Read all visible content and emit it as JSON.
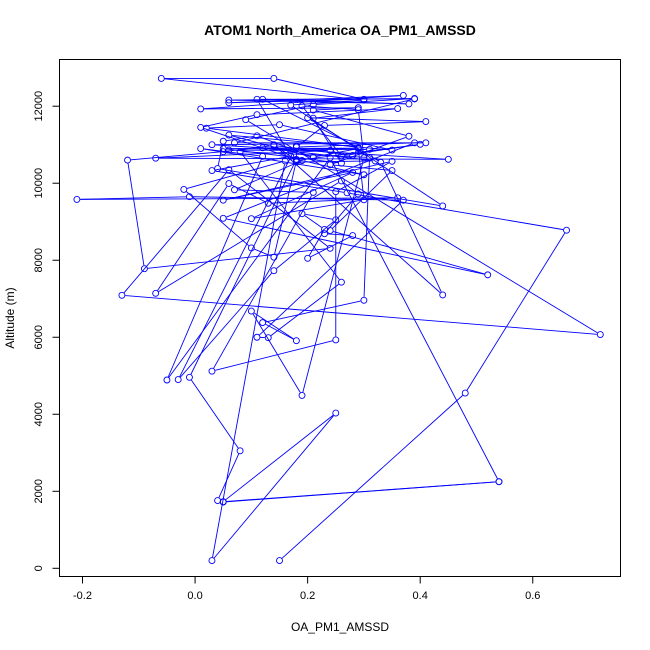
{
  "chart_data": {
    "type": "line",
    "title": "ATOM1 North_America OA_PM1_AMSSD",
    "xlabel": "OA_PM1_AMSSD",
    "ylabel": "Altitude (m)",
    "xlim": [
      -0.24,
      0.755
    ],
    "ylim": [
      -200,
      13200
    ],
    "xticks": [
      -0.2,
      0.0,
      0.2,
      0.4,
      0.6
    ],
    "xtick_labels": [
      "-0.2",
      "0.0",
      "0.2",
      "0.4",
      "0.6"
    ],
    "yticks": [
      0,
      2000,
      4000,
      6000,
      8000,
      10000,
      12000
    ],
    "ytick_labels": [
      "0",
      "2000",
      "4000",
      "6000",
      "8000",
      "10000",
      "12000"
    ],
    "grid": false,
    "marker": "open-circle",
    "series": [
      {
        "color": "#0000ff",
        "points": [
          [
            0.15,
            200
          ],
          [
            0.48,
            4550
          ],
          [
            0.66,
            8780
          ],
          [
            0.27,
            9750
          ],
          [
            0.03,
            10330
          ],
          [
            0.17,
            10700
          ],
          [
            0.11,
            12180
          ],
          [
            0.39,
            12190
          ],
          [
            0.07,
            11050
          ],
          [
            0.41,
            11050
          ],
          [
            0.03,
            11000
          ],
          [
            0.45,
            10620
          ],
          [
            -0.07,
            10650
          ],
          [
            0.24,
            10850
          ],
          [
            0.06,
            10860
          ],
          [
            0.31,
            10880
          ],
          [
            0.12,
            10920
          ],
          [
            0.32,
            10580
          ],
          [
            0.18,
            10550
          ],
          [
            0.21,
            10680
          ],
          [
            0.29,
            10900
          ],
          [
            0.28,
            10720
          ],
          [
            0.14,
            10980
          ],
          [
            0.05,
            10820
          ],
          [
            -0.12,
            10600
          ],
          [
            -0.09,
            7780
          ],
          [
            0.24,
            8310
          ],
          [
            0.06,
            10350
          ],
          [
            -0.13,
            7090
          ],
          [
            0.72,
            6070
          ],
          [
            0.09,
            11650
          ],
          [
            0.21,
            12040
          ],
          [
            0.39,
            12200
          ],
          [
            0.06,
            12160
          ],
          [
            0.38,
            12060
          ],
          [
            0.12,
            12180
          ],
          [
            0.29,
            10930
          ],
          [
            0.02,
            11430
          ],
          [
            0.15,
            11520
          ],
          [
            0.35,
            10860
          ],
          [
            0.06,
            11250
          ],
          [
            0.21,
            10670
          ],
          [
            0.11,
            11230
          ],
          [
            0.05,
            11090
          ],
          [
            0.04,
            10380
          ],
          [
            0.44,
            9410
          ],
          [
            0.17,
            12030
          ],
          [
            0.3,
            12160
          ],
          [
            -0.06,
            12720
          ],
          [
            0.14,
            12720
          ],
          [
            0.3,
            12180
          ],
          [
            0.06,
            12090
          ],
          [
            0.37,
            12280
          ],
          [
            0.01,
            11930
          ],
          [
            0.29,
            11960
          ],
          [
            0.21,
            11900
          ],
          [
            0.38,
            11220
          ],
          [
            0.24,
            10480
          ],
          [
            0.35,
            10330
          ],
          [
            0.24,
            8770
          ],
          [
            0.52,
            7620
          ],
          [
            0.05,
            9090
          ],
          [
            0.39,
            11050
          ],
          [
            0.18,
            10940
          ],
          [
            0.23,
            11500
          ],
          [
            0.41,
            11600
          ],
          [
            0.2,
            11700
          ],
          [
            0.33,
            10540
          ],
          [
            0.44,
            7100
          ],
          [
            0.14,
            11000
          ],
          [
            0.18,
            10590
          ],
          [
            0.4,
            11010
          ],
          [
            0.26,
            10710
          ],
          [
            0.19,
            12010
          ],
          [
            0.29,
            11910
          ],
          [
            0.3,
            10660
          ],
          [
            0.19,
            4490
          ],
          [
            0.1,
            6680
          ],
          [
            0.18,
            5910
          ],
          [
            0.12,
            6380
          ],
          [
            0.3,
            6960
          ],
          [
            0.31,
            10670
          ],
          [
            0.08,
            10820
          ],
          [
            0.26,
            7430
          ],
          [
            0.13,
            5990
          ],
          [
            0.11,
            6000
          ],
          [
            0.37,
            9560
          ],
          [
            -0.01,
            9650
          ],
          [
            -0.21,
            9580
          ],
          [
            0.36,
            9620
          ],
          [
            0.13,
            9480
          ],
          [
            0.06,
            9990
          ],
          [
            -0.07,
            7140
          ],
          [
            0.26,
            10060
          ],
          [
            0.29,
            9720
          ],
          [
            0.23,
            8690
          ],
          [
            0.28,
            8640
          ],
          [
            0.2,
            8050
          ],
          [
            0.23,
            8800
          ],
          [
            0.19,
            9210
          ],
          [
            0.25,
            9050
          ],
          [
            0.14,
            7730
          ],
          [
            -0.03,
            4900
          ],
          [
            0.18,
            10970
          ],
          [
            0.18,
            10580
          ],
          [
            0.14,
            8080
          ],
          [
            0.1,
            8320
          ],
          [
            -0.02,
            9840
          ],
          [
            0.16,
            10580
          ],
          [
            0.03,
            200
          ],
          [
            0.25,
            4030
          ],
          [
            0.05,
            1730
          ],
          [
            0.54,
            2250
          ],
          [
            0.24,
            10660
          ],
          [
            -0.05,
            4890
          ],
          [
            0.12,
            10700
          ],
          [
            0.01,
            10900
          ],
          [
            0.3,
            10220
          ],
          [
            0.19,
            10590
          ],
          [
            0.07,
            9830
          ],
          [
            0.21,
            9760
          ],
          [
            0.03,
            5120
          ],
          [
            0.25,
            5930
          ],
          [
            0.25,
            9780
          ],
          [
            0.35,
            10570
          ],
          [
            0.05,
            9560
          ],
          [
            0.28,
            10280
          ],
          [
            0.1,
            9080
          ],
          [
            0.3,
            9570
          ],
          [
            0.29,
            10910
          ],
          [
            0.05,
            10900
          ],
          [
            0.26,
            10520
          ],
          [
            0.21,
            11690
          ],
          [
            0.36,
            11940
          ],
          [
            0.11,
            11780
          ],
          [
            0.01,
            11450
          ],
          [
            0.18,
            10620
          ],
          [
            -0.01,
            4960
          ],
          [
            0.08,
            3050
          ],
          [
            0.04,
            1760
          ],
          [
            0.05,
            1720
          ],
          [
            0.54,
            2250
          ]
        ]
      }
    ]
  }
}
